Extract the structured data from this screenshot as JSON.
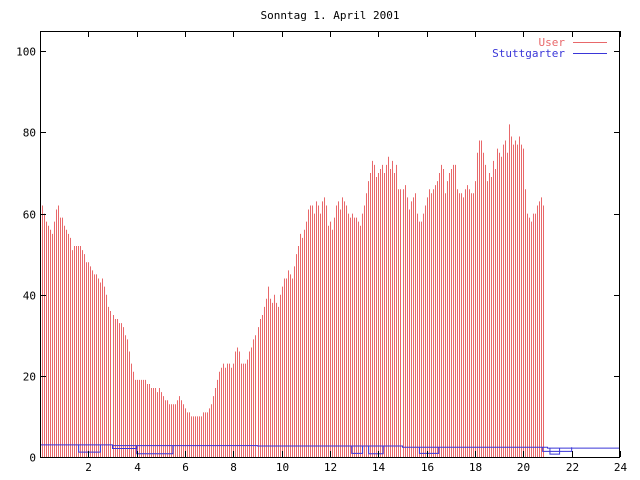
{
  "chart_data": {
    "type": "bar",
    "title": "Sonntag 1. April 2001",
    "xlabel": "",
    "ylabel": "",
    "xlim": [
      0,
      24
    ],
    "ylim": [
      0,
      105
    ],
    "x_ticks": [
      2,
      4,
      6,
      8,
      10,
      12,
      14,
      16,
      18,
      20,
      22,
      24
    ],
    "y_ticks": [
      0,
      20,
      40,
      60,
      80,
      100
    ],
    "grid": false,
    "legend_position": "top-right",
    "colors": {
      "user": "#e8686a",
      "stuttgarter": "#3a36d8",
      "axis": "#000000"
    },
    "series": [
      {
        "name": "User",
        "style": "impulses",
        "sample_interval_minutes": 5,
        "values": [
          63,
          62,
          60,
          58,
          57,
          56,
          55,
          58,
          61,
          62,
          59,
          59,
          57,
          56,
          55,
          54,
          51,
          52,
          52,
          52,
          52,
          51,
          50,
          48,
          48,
          47,
          46,
          45,
          45,
          44,
          43,
          44,
          42,
          40,
          37,
          36,
          35,
          34,
          34,
          33,
          33,
          32,
          30,
          29,
          26,
          23,
          21,
          19,
          19,
          19,
          19,
          19,
          19,
          18,
          18,
          17,
          17,
          17,
          16,
          17,
          16,
          15,
          14,
          14,
          13,
          13,
          13,
          13,
          14,
          15,
          14,
          13,
          12,
          11,
          11,
          10,
          10,
          10,
          10,
          10,
          10,
          11,
          11,
          11,
          12,
          13,
          15,
          17,
          19,
          21,
          22,
          23,
          22,
          23,
          23,
          22,
          23,
          26,
          27,
          26,
          23,
          23,
          23,
          24,
          26,
          27,
          29,
          30,
          32,
          34,
          35,
          37,
          39,
          42,
          39,
          38,
          40,
          38,
          37,
          40,
          42,
          44,
          44,
          46,
          45,
          44,
          47,
          50,
          52,
          55,
          54,
          56,
          58,
          61,
          62,
          62,
          60,
          63,
          62,
          60,
          63,
          64,
          62,
          57,
          58,
          56,
          59,
          62,
          63,
          61,
          64,
          63,
          62,
          60,
          59,
          60,
          59,
          59,
          58,
          57,
          60,
          62,
          65,
          68,
          70,
          73,
          72,
          69,
          70,
          71,
          72,
          70,
          72,
          74,
          71,
          73,
          70,
          72,
          66,
          66,
          66,
          67,
          64,
          61,
          63,
          64,
          65,
          60,
          58,
          58,
          60,
          62,
          64,
          66,
          65,
          66,
          67,
          68,
          70,
          72,
          71,
          65,
          68,
          70,
          71,
          72,
          72,
          66,
          65,
          65,
          64,
          66,
          67,
          66,
          65,
          65,
          68,
          75,
          78,
          78,
          75,
          72,
          68,
          70,
          69,
          73,
          71,
          76,
          75,
          74,
          77,
          78,
          75,
          82,
          79,
          77,
          78,
          77,
          79,
          77,
          76,
          66,
          60,
          59,
          58,
          60,
          60,
          62,
          63,
          64,
          62
        ]
      },
      {
        "name": "Stuttgarter",
        "style": "steps",
        "points": [
          [
            0,
            3
          ],
          [
            3,
            2.8
          ],
          [
            9,
            2.7
          ],
          [
            15,
            2.4
          ],
          [
            21,
            2.2
          ],
          [
            24,
            2.2
          ]
        ],
        "dips": [
          [
            1.6,
            2.5,
            1.2
          ],
          [
            3.0,
            4.0,
            2.1
          ],
          [
            4.0,
            5.5,
            0.8
          ],
          [
            12.9,
            13.35,
            0.9
          ],
          [
            13.6,
            14.2,
            0.8
          ],
          [
            15.7,
            16.5,
            0.9
          ],
          [
            20.8,
            22.0,
            1.4
          ],
          [
            21.1,
            21.5,
            0.7
          ]
        ]
      }
    ]
  }
}
